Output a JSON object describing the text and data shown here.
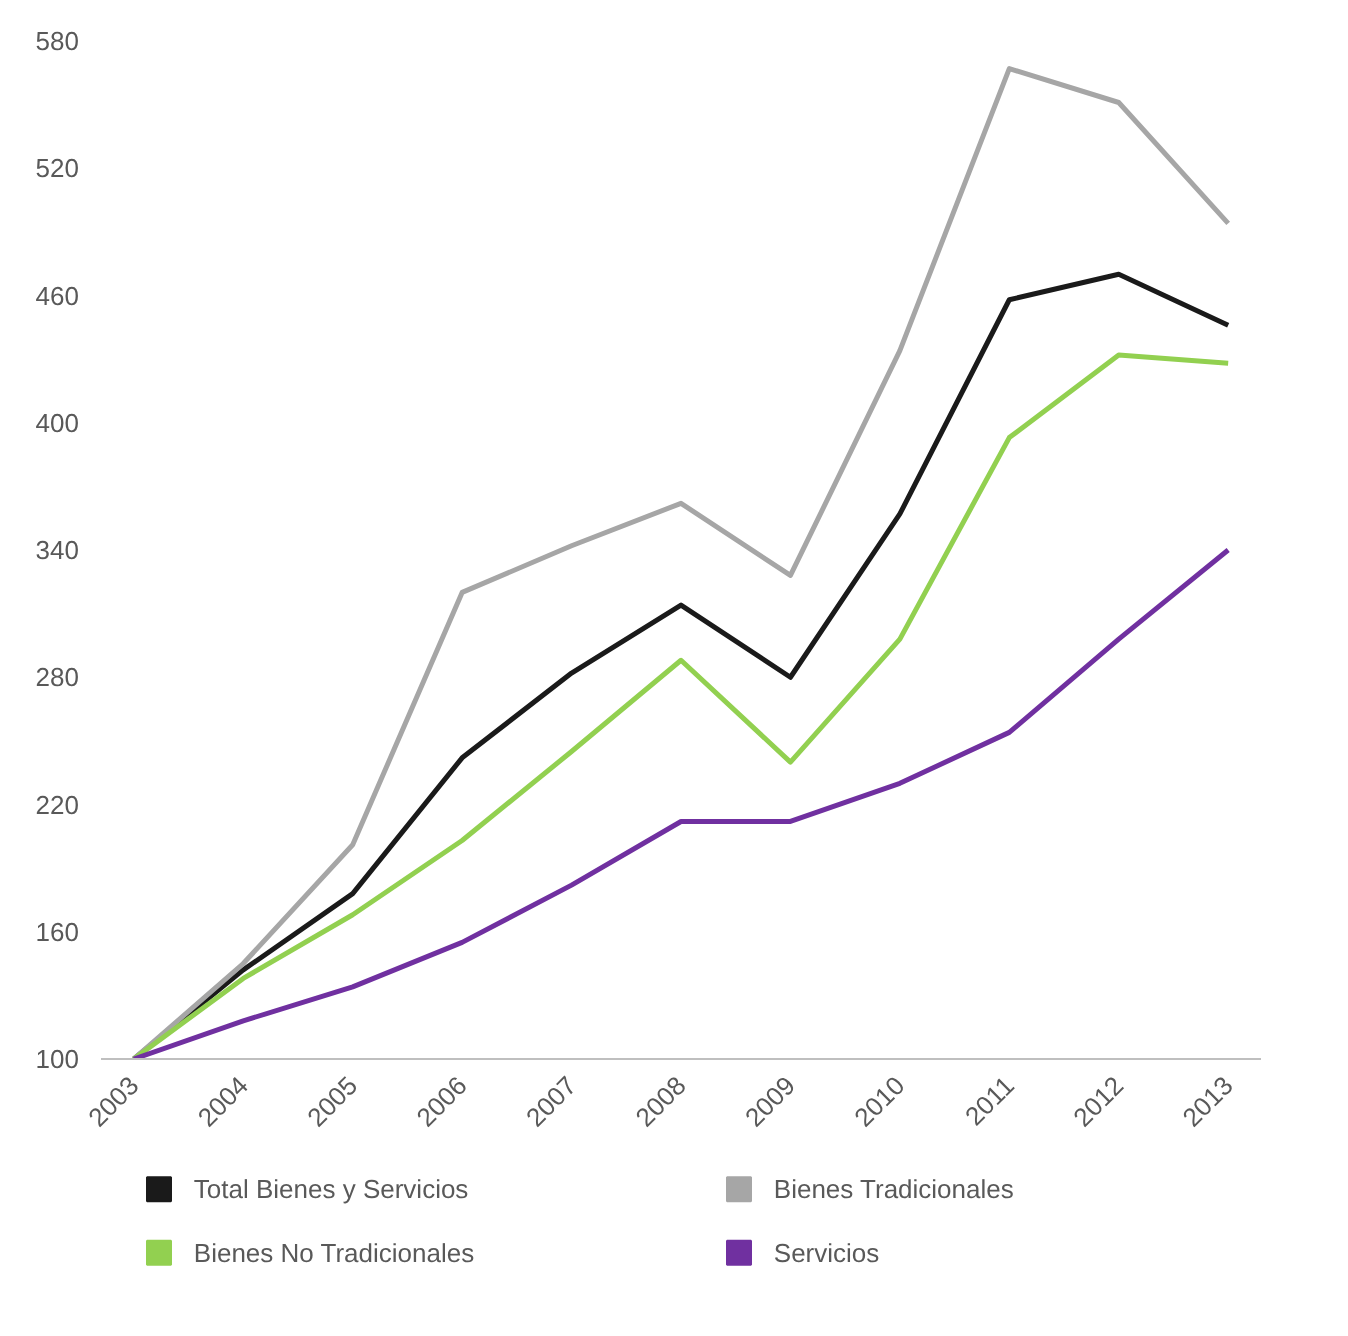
{
  "chart_data": {
    "type": "line",
    "categories": [
      "2003",
      "2004",
      "2005",
      "2006",
      "2007",
      "2008",
      "2009",
      "2010",
      "2011",
      "2012",
      "2013"
    ],
    "ylim": [
      100,
      580
    ],
    "yticks": [
      100,
      160,
      220,
      280,
      340,
      400,
      460,
      520,
      580
    ],
    "grid": false,
    "legend": "bottom",
    "marker": "none",
    "line_style": "solid",
    "series": [
      {
        "name": "Total Bienes y Servicios",
        "color": "#1a1a1a",
        "values": [
          100,
          142,
          178,
          242,
          282,
          314,
          280,
          357,
          458,
          470,
          446
        ]
      },
      {
        "name": "Bienes Tradicionales",
        "color": "#a6a6a6",
        "values": [
          100,
          145,
          201,
          320,
          342,
          362,
          328,
          434,
          567,
          551,
          494
        ]
      },
      {
        "name": "Bienes No Tradicionales",
        "color": "#92d050",
        "values": [
          100,
          138,
          168,
          203,
          245,
          288,
          240,
          298,
          393,
          432,
          428
        ]
      },
      {
        "name": "Servicios",
        "color": "#7030a0",
        "values": [
          100,
          118,
          134,
          155,
          182,
          212,
          212,
          230,
          254,
          298,
          340
        ]
      }
    ]
  }
}
